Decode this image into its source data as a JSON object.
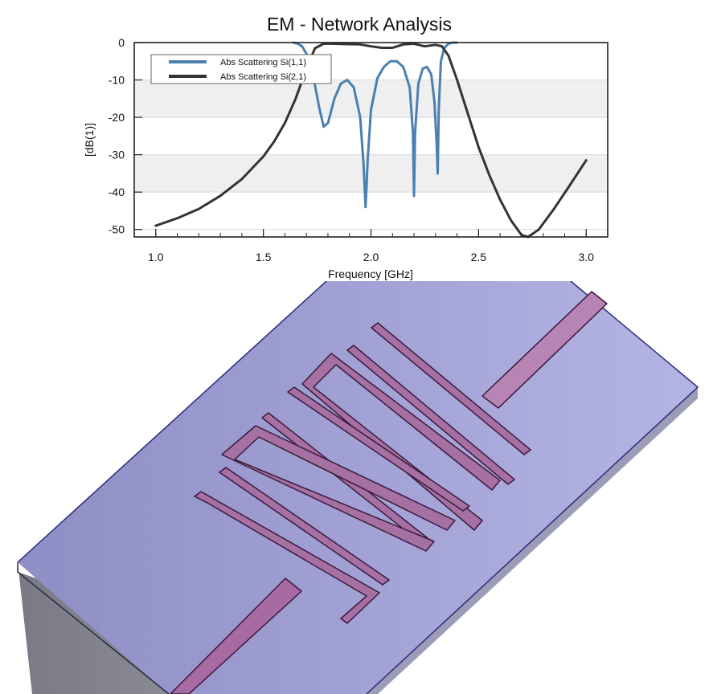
{
  "chart_data": {
    "type": "line",
    "title": "EM - Network Analysis",
    "xlabel": "Frequency [GHz]",
    "ylabel": "[dB(1)]",
    "xlim": [
      0.9,
      3.1
    ],
    "ylim": [
      -52,
      0
    ],
    "xticks": [
      "1.0",
      "1.5",
      "2.0",
      "2.5",
      "3.0"
    ],
    "xtick_values": [
      1.0,
      1.5,
      2.0,
      2.5,
      3.0
    ],
    "yticks": [
      "0",
      "-10",
      "-20",
      "-30",
      "-40",
      "-50"
    ],
    "ytick_values": [
      0,
      -10,
      -20,
      -30,
      -40,
      -50
    ],
    "grid": true,
    "legend_position": "top-left",
    "series": [
      {
        "name": "Abs Scattering Si(1,1)",
        "color": "#4a7fb0",
        "x": [
          1.64,
          1.66,
          1.68,
          1.7,
          1.72,
          1.74,
          1.76,
          1.78,
          1.8,
          1.83,
          1.86,
          1.89,
          1.92,
          1.95,
          1.965,
          1.975,
          1.985,
          2.0,
          2.03,
          2.06,
          2.09,
          2.12,
          2.15,
          2.18,
          2.195,
          2.2,
          2.205,
          2.22,
          2.24,
          2.26,
          2.28,
          2.295,
          2.305,
          2.31,
          2.315,
          2.325,
          2.34,
          2.36,
          2.38,
          2.4
        ],
        "y": [
          0,
          -0.3,
          -1.0,
          -3.0,
          -6.5,
          -11.5,
          -17.5,
          -22.5,
          -21.5,
          -15.0,
          -11.0,
          -10.0,
          -12.0,
          -20.0,
          -32.0,
          -44.0,
          -31.0,
          -18.0,
          -9.5,
          -6.5,
          -5.0,
          -5.0,
          -6.5,
          -12.0,
          -24.0,
          -41.0,
          -24.0,
          -11.0,
          -7.0,
          -6.5,
          -8.5,
          -16.0,
          -27.0,
          -35.0,
          -18.0,
          -5.0,
          -1.5,
          -0.3,
          0,
          0
        ]
      },
      {
        "name": "Abs Scattering Si(2,1)",
        "color": "#333333",
        "x": [
          1.0,
          1.1,
          1.2,
          1.3,
          1.4,
          1.5,
          1.55,
          1.6,
          1.65,
          1.7,
          1.74,
          1.78,
          1.82,
          1.88,
          1.95,
          2.0,
          2.05,
          2.1,
          2.15,
          2.2,
          2.25,
          2.3,
          2.33,
          2.36,
          2.4,
          2.45,
          2.5,
          2.55,
          2.6,
          2.65,
          2.7,
          2.73,
          2.78,
          2.85,
          2.92,
          3.0
        ],
        "y": [
          -49.0,
          -47.0,
          -44.5,
          -41.0,
          -36.5,
          -30.5,
          -26.5,
          -21.5,
          -15.0,
          -7.0,
          -1.5,
          -0.3,
          -0.3,
          -0.4,
          -0.5,
          -1.0,
          -1.4,
          -1.4,
          -0.5,
          -0.3,
          -1.0,
          -0.6,
          -1.0,
          -3.5,
          -10.0,
          -19.0,
          -28.0,
          -35.5,
          -42.0,
          -47.5,
          -51.5,
          -52.0,
          -50.0,
          -44.5,
          -38.5,
          -31.5
        ]
      }
    ]
  }
}
